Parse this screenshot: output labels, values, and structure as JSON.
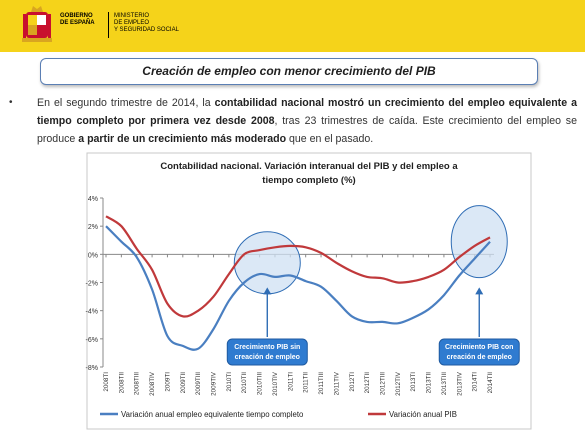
{
  "header": {
    "gov_text": "GOBIERNO\nDE ESPAÑA",
    "ministry_text": "MINISTERIO\nDE EMPLEO\nY SEGURIDAD SOCIAL",
    "color": "#f5d31a"
  },
  "slide_title": "Creación de empleo con menor crecimiento del PIB",
  "paragraph": {
    "t1": "En el segundo trimestre de 2014, la ",
    "b1": "contabilidad nacional mostró un crecimiento del empleo equivalente a tiempo completo por primera vez desde 2008",
    "t2": ", tras 23 trimestres de caída. Este crecimiento del empleo se produce ",
    "b2": "a partir de un crecimiento más moderado",
    "t3": " que en el pasado."
  },
  "chart_data": {
    "type": "line",
    "title_line1": "Contabilidad nacional. Variación interanual del PIB y del empleo a",
    "title_line2": "tiempo completo (%)",
    "categories": [
      "2008TI",
      "2008TII",
      "2008TIII",
      "2008TIV",
      "2009TI",
      "2009TII",
      "2009TIII",
      "2009TIV",
      "2010TI",
      "2010TII",
      "2010TIII",
      "2010TIV",
      "2011TI",
      "2011TII",
      "2011TIII",
      "2011TIV",
      "2012TI",
      "2012TII",
      "2012TIII",
      "2012TIV",
      "2013TI",
      "2013TII",
      "2013TIII",
      "2013TIV",
      "2014TI",
      "2014TII"
    ],
    "ylim": [
      -8,
      4
    ],
    "yticks": [
      "4%",
      "2%",
      "0%",
      "-2%",
      "-4%",
      "-6%",
      "-8%"
    ],
    "series": [
      {
        "name": "Variación anual empleo equivalente tiempo completo",
        "color": "#4a7fc1",
        "values": [
          2.0,
          0.9,
          -0.2,
          -2.5,
          -5.8,
          -6.5,
          -6.7,
          -5.3,
          -3.3,
          -2.0,
          -1.4,
          -1.6,
          -1.5,
          -1.9,
          -2.3,
          -3.3,
          -4.4,
          -4.8,
          -4.8,
          -4.9,
          -4.5,
          -3.9,
          -2.9,
          -1.5,
          -0.3,
          0.9
        ]
      },
      {
        "name": "Variación anual PIB",
        "color": "#c0393b",
        "values": [
          2.7,
          2.0,
          0.4,
          -1.1,
          -3.5,
          -4.4,
          -4.0,
          -3.0,
          -1.4,
          0.0,
          0.3,
          0.5,
          0.6,
          0.5,
          0.1,
          -0.6,
          -1.2,
          -1.6,
          -1.7,
          -2.0,
          -1.9,
          -1.6,
          -1.1,
          -0.2,
          0.6,
          1.2
        ]
      }
    ],
    "annotations": [
      {
        "text_line1": "Crecimiento PIB sin",
        "text_line2": "creación de empleo"
      },
      {
        "text_line1": "Crecimiento PIB con",
        "text_line2": "creación de empleo"
      }
    ],
    "legend_position": "bottom",
    "grid": false
  }
}
